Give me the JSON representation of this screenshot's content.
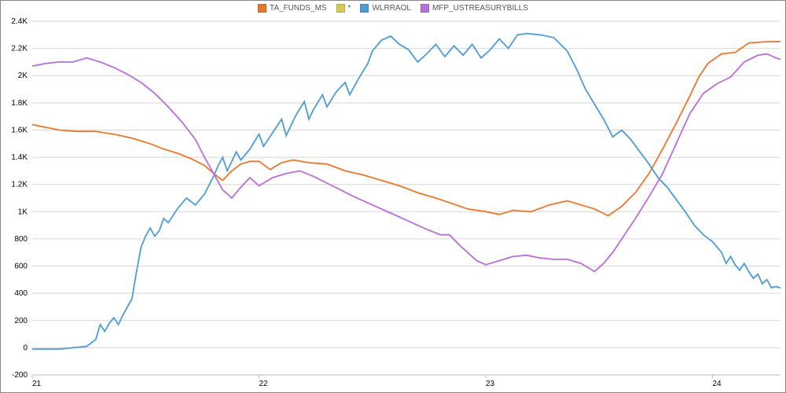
{
  "chart": {
    "type": "line",
    "background_color": "#ffffff",
    "grid_color": "#d7d7d7",
    "axis_text_color": "#777777",
    "axis_fontsize": 10,
    "legend_fontsize": 10,
    "line_width": 1.8,
    "x": {
      "min": 21,
      "max": 24.3,
      "ticks": [
        21,
        22,
        23,
        24
      ],
      "tick_labels": [
        "21",
        "22",
        "23",
        "24"
      ]
    },
    "y": {
      "min": -200,
      "max": 2400,
      "ticks": [
        -200,
        0,
        200,
        400,
        600,
        800,
        1000,
        1200,
        1400,
        1600,
        1800,
        2000,
        2200,
        2400
      ],
      "tick_labels": [
        "-200",
        "0",
        "200",
        "400",
        "600",
        "800",
        "1K",
        "1.2K",
        "1.4K",
        "1.6K",
        "1.8K",
        "2K",
        "2.2K",
        "2.4K"
      ]
    },
    "legend": [
      {
        "label": "TA_FUNDS_MS",
        "color": "#e8762d"
      },
      {
        "label": "*",
        "color": "#d6c951"
      },
      {
        "label": "WLRRAOL",
        "color": "#4e9bd4"
      },
      {
        "label": "MFP_USTREASURYBILLS",
        "color": "#b86fd6"
      }
    ],
    "series": [
      {
        "name": "TA_FUNDS_MS",
        "color": "#e8762d",
        "points": [
          [
            21.0,
            1640
          ],
          [
            21.06,
            1620
          ],
          [
            21.12,
            1600
          ],
          [
            21.2,
            1590
          ],
          [
            21.28,
            1590
          ],
          [
            21.36,
            1570
          ],
          [
            21.44,
            1540
          ],
          [
            21.52,
            1500
          ],
          [
            21.58,
            1460
          ],
          [
            21.64,
            1430
          ],
          [
            21.7,
            1390
          ],
          [
            21.76,
            1340
          ],
          [
            21.8,
            1280
          ],
          [
            21.84,
            1230
          ],
          [
            21.88,
            1300
          ],
          [
            21.92,
            1350
          ],
          [
            21.96,
            1370
          ],
          [
            22.0,
            1370
          ],
          [
            22.05,
            1310
          ],
          [
            22.1,
            1360
          ],
          [
            22.15,
            1380
          ],
          [
            22.22,
            1360
          ],
          [
            22.3,
            1350
          ],
          [
            22.38,
            1300
          ],
          [
            22.46,
            1270
          ],
          [
            22.54,
            1230
          ],
          [
            22.62,
            1190
          ],
          [
            22.7,
            1140
          ],
          [
            22.78,
            1100
          ],
          [
            22.85,
            1060
          ],
          [
            22.92,
            1020
          ],
          [
            23.0,
            1000
          ],
          [
            23.06,
            980
          ],
          [
            23.12,
            1010
          ],
          [
            23.2,
            1000
          ],
          [
            23.28,
            1050
          ],
          [
            23.36,
            1080
          ],
          [
            23.42,
            1050
          ],
          [
            23.48,
            1020
          ],
          [
            23.54,
            970
          ],
          [
            23.6,
            1040
          ],
          [
            23.66,
            1140
          ],
          [
            23.72,
            1280
          ],
          [
            23.78,
            1460
          ],
          [
            23.84,
            1650
          ],
          [
            23.9,
            1850
          ],
          [
            23.94,
            1990
          ],
          [
            23.98,
            2090
          ],
          [
            24.04,
            2160
          ],
          [
            24.1,
            2170
          ],
          [
            24.16,
            2240
          ],
          [
            24.24,
            2250
          ],
          [
            24.3,
            2250
          ]
        ]
      },
      {
        "name": "WLRRAOL",
        "color": "#4e9bd4",
        "points": [
          [
            21.0,
            -10
          ],
          [
            21.06,
            -10
          ],
          [
            21.12,
            -10
          ],
          [
            21.18,
            0
          ],
          [
            21.24,
            10
          ],
          [
            21.28,
            60
          ],
          [
            21.3,
            170
          ],
          [
            21.32,
            120
          ],
          [
            21.34,
            180
          ],
          [
            21.36,
            220
          ],
          [
            21.38,
            170
          ],
          [
            21.4,
            240
          ],
          [
            21.44,
            360
          ],
          [
            21.46,
            560
          ],
          [
            21.48,
            740
          ],
          [
            21.5,
            820
          ],
          [
            21.52,
            880
          ],
          [
            21.54,
            820
          ],
          [
            21.56,
            860
          ],
          [
            21.58,
            950
          ],
          [
            21.6,
            920
          ],
          [
            21.64,
            1020
          ],
          [
            21.68,
            1100
          ],
          [
            21.72,
            1050
          ],
          [
            21.76,
            1130
          ],
          [
            21.8,
            1260
          ],
          [
            21.82,
            1340
          ],
          [
            21.84,
            1400
          ],
          [
            21.86,
            1300
          ],
          [
            21.88,
            1370
          ],
          [
            21.9,
            1440
          ],
          [
            21.92,
            1380
          ],
          [
            21.96,
            1460
          ],
          [
            22.0,
            1570
          ],
          [
            22.02,
            1480
          ],
          [
            22.06,
            1580
          ],
          [
            22.1,
            1680
          ],
          [
            22.12,
            1560
          ],
          [
            22.16,
            1700
          ],
          [
            22.2,
            1810
          ],
          [
            22.22,
            1680
          ],
          [
            22.24,
            1750
          ],
          [
            22.28,
            1860
          ],
          [
            22.3,
            1770
          ],
          [
            22.34,
            1880
          ],
          [
            22.38,
            1950
          ],
          [
            22.4,
            1860
          ],
          [
            22.44,
            1980
          ],
          [
            22.48,
            2090
          ],
          [
            22.5,
            2180
          ],
          [
            22.54,
            2260
          ],
          [
            22.58,
            2290
          ],
          [
            22.62,
            2230
          ],
          [
            22.66,
            2190
          ],
          [
            22.7,
            2100
          ],
          [
            22.74,
            2160
          ],
          [
            22.78,
            2230
          ],
          [
            22.82,
            2140
          ],
          [
            22.86,
            2220
          ],
          [
            22.9,
            2150
          ],
          [
            22.94,
            2230
          ],
          [
            22.98,
            2130
          ],
          [
            23.02,
            2190
          ],
          [
            23.06,
            2270
          ],
          [
            23.1,
            2200
          ],
          [
            23.14,
            2300
          ],
          [
            23.18,
            2310
          ],
          [
            23.24,
            2300
          ],
          [
            23.3,
            2280
          ],
          [
            23.36,
            2180
          ],
          [
            23.4,
            2050
          ],
          [
            23.44,
            1900
          ],
          [
            23.48,
            1790
          ],
          [
            23.52,
            1680
          ],
          [
            23.56,
            1550
          ],
          [
            23.6,
            1600
          ],
          [
            23.64,
            1530
          ],
          [
            23.68,
            1440
          ],
          [
            23.72,
            1350
          ],
          [
            23.76,
            1250
          ],
          [
            23.8,
            1180
          ],
          [
            23.84,
            1090
          ],
          [
            23.88,
            1000
          ],
          [
            23.92,
            900
          ],
          [
            23.96,
            830
          ],
          [
            24.0,
            780
          ],
          [
            24.04,
            700
          ],
          [
            24.06,
            620
          ],
          [
            24.08,
            670
          ],
          [
            24.1,
            610
          ],
          [
            24.12,
            570
          ],
          [
            24.14,
            620
          ],
          [
            24.16,
            560
          ],
          [
            24.18,
            510
          ],
          [
            24.2,
            540
          ],
          [
            24.22,
            470
          ],
          [
            24.24,
            500
          ],
          [
            24.26,
            440
          ],
          [
            24.28,
            450
          ],
          [
            24.3,
            440
          ]
        ]
      },
      {
        "name": "MFP_USTREASURYBILLS",
        "color": "#b86fd6",
        "points": [
          [
            21.0,
            2070
          ],
          [
            21.06,
            2090
          ],
          [
            21.12,
            2100
          ],
          [
            21.18,
            2100
          ],
          [
            21.24,
            2130
          ],
          [
            21.3,
            2100
          ],
          [
            21.36,
            2060
          ],
          [
            21.42,
            2010
          ],
          [
            21.48,
            1950
          ],
          [
            21.54,
            1870
          ],
          [
            21.6,
            1770
          ],
          [
            21.66,
            1660
          ],
          [
            21.72,
            1530
          ],
          [
            21.76,
            1400
          ],
          [
            21.8,
            1280
          ],
          [
            21.84,
            1160
          ],
          [
            21.88,
            1100
          ],
          [
            21.92,
            1180
          ],
          [
            21.96,
            1250
          ],
          [
            22.0,
            1190
          ],
          [
            22.06,
            1250
          ],
          [
            22.12,
            1280
          ],
          [
            22.18,
            1300
          ],
          [
            22.24,
            1260
          ],
          [
            22.3,
            1210
          ],
          [
            22.36,
            1160
          ],
          [
            22.42,
            1110
          ],
          [
            22.5,
            1050
          ],
          [
            22.58,
            990
          ],
          [
            22.66,
            930
          ],
          [
            22.74,
            870
          ],
          [
            22.8,
            830
          ],
          [
            22.84,
            830
          ],
          [
            22.88,
            760
          ],
          [
            22.92,
            700
          ],
          [
            22.96,
            640
          ],
          [
            23.0,
            610
          ],
          [
            23.06,
            640
          ],
          [
            23.12,
            670
          ],
          [
            23.18,
            680
          ],
          [
            23.24,
            660
          ],
          [
            23.3,
            650
          ],
          [
            23.36,
            650
          ],
          [
            23.42,
            620
          ],
          [
            23.48,
            560
          ],
          [
            23.52,
            620
          ],
          [
            23.56,
            700
          ],
          [
            23.6,
            800
          ],
          [
            23.66,
            950
          ],
          [
            23.72,
            1110
          ],
          [
            23.78,
            1280
          ],
          [
            23.84,
            1500
          ],
          [
            23.9,
            1720
          ],
          [
            23.96,
            1870
          ],
          [
            24.02,
            1940
          ],
          [
            24.08,
            1990
          ],
          [
            24.14,
            2100
          ],
          [
            24.2,
            2150
          ],
          [
            24.24,
            2160
          ],
          [
            24.28,
            2130
          ],
          [
            24.3,
            2120
          ]
        ]
      }
    ]
  }
}
